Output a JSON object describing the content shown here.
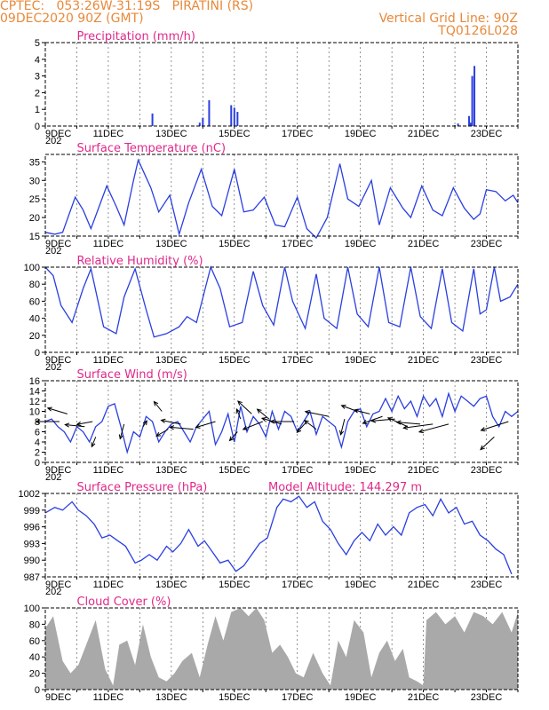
{
  "header": {
    "line1": "CPTEC:   053:26W-31:19S   PIRATINI (RS)",
    "line2": "09DEC2020 90Z (GMT)",
    "grid_note": "Vertical Grid Line: 90Z",
    "run_code": "TQ0126L028"
  },
  "colors": {
    "header": "#e8893a",
    "titles": "#e0288a",
    "series": "#2a3fe0",
    "cloud": "#a9a9a9"
  },
  "x_axis": {
    "labels": [
      "9DEC",
      "11DEC",
      "13DEC",
      "15DEC",
      "17DEC",
      "19DEC",
      "21DEC",
      "23DEC"
    ],
    "label_days": [
      0,
      2,
      4,
      6,
      8,
      10,
      12,
      14
    ],
    "range_days": [
      0,
      15
    ],
    "cut_label": "202"
  },
  "chart_data": [
    {
      "type": "bar",
      "title": "Precipitation (mm/h)",
      "ylim": [
        0,
        5
      ],
      "yticks": [
        0,
        1,
        2,
        3,
        4,
        5
      ],
      "x": [
        3.4,
        4.9,
        5.0,
        5.2,
        5.9,
        6.0,
        6.1,
        13.0,
        13.1,
        13.45,
        13.5,
        13.55,
        13.62
      ],
      "values": [
        0.75,
        0.2,
        0.5,
        1.55,
        1.25,
        1.1,
        0.85,
        0.05,
        0.15,
        0.6,
        0.2,
        3.0,
        3.6
      ]
    },
    {
      "type": "line",
      "title": "Surface Temperature (nC)",
      "ylim": [
        15,
        37
      ],
      "yticks": [
        15,
        20,
        25,
        30,
        35
      ],
      "x": [
        0,
        0.3,
        0.55,
        0.95,
        1.2,
        1.45,
        1.95,
        2.25,
        2.5,
        2.8,
        2.95,
        3.35,
        3.6,
        3.95,
        4.25,
        4.55,
        4.95,
        5.3,
        5.6,
        6.0,
        6.3,
        6.6,
        6.95,
        7.3,
        7.6,
        8.0,
        8.3,
        8.6,
        8.95,
        9.35,
        9.6,
        9.95,
        10.35,
        10.6,
        10.95,
        11.35,
        11.6,
        11.95,
        12.3,
        12.6,
        12.95,
        13.3,
        13.6,
        13.8,
        14.0,
        14.3,
        14.6,
        14.85,
        15.0
      ],
      "values": [
        16,
        15.5,
        16,
        25.5,
        22,
        17,
        28.5,
        23,
        18,
        30,
        35.5,
        28,
        21.5,
        26,
        15.5,
        24,
        33,
        23,
        20.5,
        33,
        21.5,
        22,
        25.5,
        18,
        17.5,
        25.5,
        17,
        14.5,
        20,
        34.5,
        25,
        23,
        30,
        18,
        28,
        22.5,
        20,
        28.5,
        22,
        20.5,
        28,
        22.5,
        19.5,
        21,
        27.5,
        27,
        24.5,
        26,
        24
      ]
    },
    {
      "type": "line",
      "title": "Relative Humidity (%)",
      "ylim": [
        0,
        100
      ],
      "yticks": [
        0,
        20,
        40,
        60,
        80,
        100
      ],
      "x": [
        0,
        0.25,
        0.5,
        0.85,
        1.2,
        1.45,
        1.85,
        2.25,
        2.5,
        2.85,
        3.2,
        3.45,
        3.85,
        4.25,
        4.5,
        4.8,
        5.25,
        5.55,
        5.85,
        6.25,
        6.6,
        6.9,
        7.25,
        7.6,
        7.85,
        8.25,
        8.6,
        8.85,
        9.25,
        9.6,
        9.9,
        10.25,
        10.6,
        10.9,
        11.25,
        11.6,
        11.9,
        12.25,
        12.6,
        12.9,
        13.25,
        13.6,
        13.8,
        14.0,
        14.25,
        14.45,
        14.75,
        15.0
      ],
      "values": [
        100,
        90,
        55,
        35,
        75,
        98,
        30,
        22,
        65,
        98,
        50,
        18,
        22,
        30,
        42,
        35,
        100,
        75,
        30,
        35,
        95,
        55,
        32,
        100,
        60,
        28,
        92,
        40,
        28,
        100,
        45,
        30,
        100,
        35,
        30,
        100,
        42,
        28,
        98,
        35,
        25,
        98,
        45,
        50,
        100,
        60,
        65,
        80
      ]
    },
    {
      "type": "line",
      "title": "Surface Wind (m/s)",
      "ylim": [
        0,
        16
      ],
      "yticks": [
        0,
        2,
        4,
        6,
        8,
        10,
        12,
        14,
        16
      ],
      "x": [
        0,
        0.2,
        0.4,
        0.6,
        0.8,
        1.0,
        1.2,
        1.4,
        1.6,
        1.8,
        2.0,
        2.2,
        2.4,
        2.6,
        2.8,
        3.0,
        3.2,
        3.4,
        3.6,
        3.8,
        4.0,
        4.2,
        4.4,
        4.6,
        4.8,
        5.0,
        5.2,
        5.4,
        5.6,
        5.8,
        6.0,
        6.2,
        6.4,
        6.6,
        6.8,
        7.0,
        7.2,
        7.4,
        7.6,
        7.8,
        8.0,
        8.2,
        8.4,
        8.6,
        8.8,
        9.0,
        9.2,
        9.4,
        9.6,
        9.8,
        10.0,
        10.2,
        10.4,
        10.6,
        10.8,
        11.0,
        11.2,
        11.4,
        11.6,
        11.8,
        12.0,
        12.2,
        12.4,
        12.6,
        12.8,
        13.0,
        13.2,
        13.4,
        13.6,
        13.8,
        14.0,
        14.2,
        14.4,
        14.6,
        14.8,
        15.0
      ],
      "values": [
        8,
        8.5,
        7,
        6,
        4,
        7,
        6,
        4,
        7,
        8,
        11,
        11.5,
        7,
        2,
        6,
        5,
        9,
        8,
        4,
        6,
        7.5,
        8,
        6,
        4,
        7,
        8.5,
        10,
        3.5,
        6,
        9.5,
        4,
        11,
        6,
        9,
        7.5,
        5,
        10,
        6.5,
        10,
        9,
        6,
        8,
        10,
        5.5,
        9,
        8,
        7,
        3,
        8,
        10,
        10.5,
        7,
        9.5,
        10,
        12.5,
        10,
        13,
        10.5,
        12,
        9,
        13,
        11,
        12.5,
        9,
        13.5,
        10,
        13,
        12,
        11,
        12.5,
        13,
        9,
        7,
        10,
        9,
        10
      ],
      "arrows": [
        {
          "x": 0.45,
          "y": 8,
          "u": -1.2,
          "v": 0
        },
        {
          "x": 0.7,
          "y": 9.5,
          "u": -1.0,
          "v": 0.6
        },
        {
          "x": 1.25,
          "y": 7,
          "u": -1.0,
          "v": 0.2
        },
        {
          "x": 1.5,
          "y": 8,
          "u": -0.8,
          "v": -0.3
        },
        {
          "x": 1.6,
          "y": 5,
          "u": -0.2,
          "v": -1.0
        },
        {
          "x": 2.5,
          "y": 7.5,
          "u": -0.2,
          "v": -1.5
        },
        {
          "x": 3.1,
          "y": 7,
          "u": 0.2,
          "v": 0.6
        },
        {
          "x": 3.7,
          "y": 10,
          "u": -0.4,
          "v": 1.0
        },
        {
          "x": 3.9,
          "y": 6.5,
          "u": -0.6,
          "v": -0.7
        },
        {
          "x": 4.3,
          "y": 7.5,
          "u": -1.0,
          "v": 0.4
        },
        {
          "x": 4.7,
          "y": 6.5,
          "u": -1.2,
          "v": 0.2
        },
        {
          "x": 5.4,
          "y": 8,
          "u": -1.0,
          "v": -0.6
        },
        {
          "x": 6.1,
          "y": 6,
          "u": -0.4,
          "v": -0.9
        },
        {
          "x": 6.2,
          "y": 8.5,
          "u": -0.2,
          "v": 1.0
        },
        {
          "x": 6.55,
          "y": 9.5,
          "u": -0.7,
          "v": 1.3
        },
        {
          "x": 6.9,
          "y": 8,
          "u": -1.0,
          "v": -0.8
        },
        {
          "x": 7.1,
          "y": 8.5,
          "u": -0.6,
          "v": 1.0
        },
        {
          "x": 7.5,
          "y": 7.5,
          "u": -1.0,
          "v": 0.6
        },
        {
          "x": 7.9,
          "y": 8,
          "u": -1.2,
          "v": 0
        },
        {
          "x": 8.3,
          "y": 8,
          "u": -0.5,
          "v": -1.1
        },
        {
          "x": 8.6,
          "y": 6.5,
          "u": -0.6,
          "v": 0.9
        },
        {
          "x": 9.0,
          "y": 9,
          "u": -1.2,
          "v": 0.5
        },
        {
          "x": 9.5,
          "y": 8.5,
          "u": -0.2,
          "v": -1.6
        },
        {
          "x": 9.9,
          "y": 10,
          "u": -0.8,
          "v": 0.6
        },
        {
          "x": 10.3,
          "y": 9.5,
          "u": -0.8,
          "v": 0.4
        },
        {
          "x": 10.7,
          "y": 9,
          "u": -1.0,
          "v": -0.7
        },
        {
          "x": 11.1,
          "y": 8.5,
          "u": -1.2,
          "v": -0.2
        },
        {
          "x": 11.5,
          "y": 7,
          "u": -1.0,
          "v": 0.9
        },
        {
          "x": 11.9,
          "y": 7.5,
          "u": -1.2,
          "v": 0.2
        },
        {
          "x": 12.3,
          "y": 7.5,
          "u": -1.5,
          "v": -0.4
        },
        {
          "x": 12.8,
          "y": 7.5,
          "u": -1.5,
          "v": -0.8
        },
        {
          "x": 14.25,
          "y": 5,
          "u": -0.7,
          "v": -1.3
        },
        {
          "x": 14.7,
          "y": 8,
          "u": -1.4,
          "v": -0.9
        }
      ]
    },
    {
      "type": "line",
      "title": "Surface Pressure (hPa)",
      "annotation": "Model Altitude: 144.297 m",
      "ylim": [
        987,
        1002
      ],
      "yticks": [
        987,
        990,
        993,
        996,
        999,
        1002
      ],
      "x": [
        0,
        0.3,
        0.55,
        0.85,
        1.05,
        1.3,
        1.55,
        1.8,
        2.05,
        2.3,
        2.55,
        2.85,
        3.05,
        3.3,
        3.55,
        3.85,
        4.05,
        4.3,
        4.55,
        4.85,
        5.05,
        5.3,
        5.55,
        5.8,
        6.05,
        6.3,
        6.55,
        6.8,
        7.05,
        7.35,
        7.55,
        7.8,
        8.05,
        8.3,
        8.55,
        8.8,
        9.05,
        9.3,
        9.55,
        9.8,
        10.05,
        10.3,
        10.55,
        10.8,
        11.05,
        11.3,
        11.55,
        11.8,
        12.05,
        12.3,
        12.55,
        12.8,
        13.05,
        13.3,
        13.55,
        13.8,
        14.05,
        14.3,
        14.55,
        14.8
      ],
      "values": [
        998.5,
        999.5,
        999,
        1000.5,
        999,
        998,
        996.5,
        994,
        994.5,
        993.5,
        992.5,
        989.5,
        990,
        991,
        990,
        992.5,
        991.5,
        993,
        995.5,
        992.5,
        993.5,
        991.5,
        989.5,
        990,
        988,
        989,
        991,
        993,
        994,
        999.5,
        1001,
        1000.5,
        1001.5,
        999.5,
        1000.5,
        997,
        995.5,
        993,
        991,
        993.5,
        995,
        993.5,
        996.5,
        994.5,
        996,
        994.5,
        998.5,
        999.5,
        1000,
        998,
        1001,
        998.5,
        999.5,
        996.5,
        997,
        994.5,
        993.5,
        992,
        991,
        987.5
      ]
    },
    {
      "type": "area",
      "title": "Cloud Cover (%)",
      "ylim": [
        0,
        100
      ],
      "yticks": [
        0,
        20,
        40,
        60,
        80,
        100
      ],
      "x": [
        0,
        0.25,
        0.55,
        0.8,
        1.05,
        1.3,
        1.6,
        1.9,
        2.15,
        2.35,
        2.6,
        2.85,
        3.1,
        3.35,
        3.6,
        3.85,
        4.1,
        4.35,
        4.65,
        4.9,
        5.15,
        5.4,
        5.65,
        5.9,
        6.2,
        6.45,
        6.7,
        6.95,
        7.2,
        7.45,
        7.7,
        7.95,
        8.2,
        8.5,
        8.8,
        9.05,
        9.3,
        9.55,
        9.8,
        10.1,
        10.35,
        10.6,
        10.85,
        11.1,
        11.35,
        11.55,
        11.8,
        12.0,
        12.1,
        12.4,
        12.7,
        13.0,
        13.3,
        13.6,
        13.9,
        14.2,
        14.5,
        14.8,
        15.0
      ],
      "values": [
        75,
        90,
        35,
        20,
        30,
        55,
        85,
        25,
        5,
        55,
        60,
        30,
        80,
        40,
        15,
        10,
        20,
        35,
        45,
        15,
        55,
        90,
        60,
        95,
        100,
        90,
        100,
        85,
        45,
        55,
        40,
        20,
        15,
        45,
        20,
        5,
        60,
        40,
        85,
        70,
        15,
        45,
        60,
        35,
        50,
        15,
        10,
        5,
        85,
        95,
        80,
        90,
        70,
        95,
        90,
        80,
        95,
        70,
        95
      ]
    }
  ]
}
